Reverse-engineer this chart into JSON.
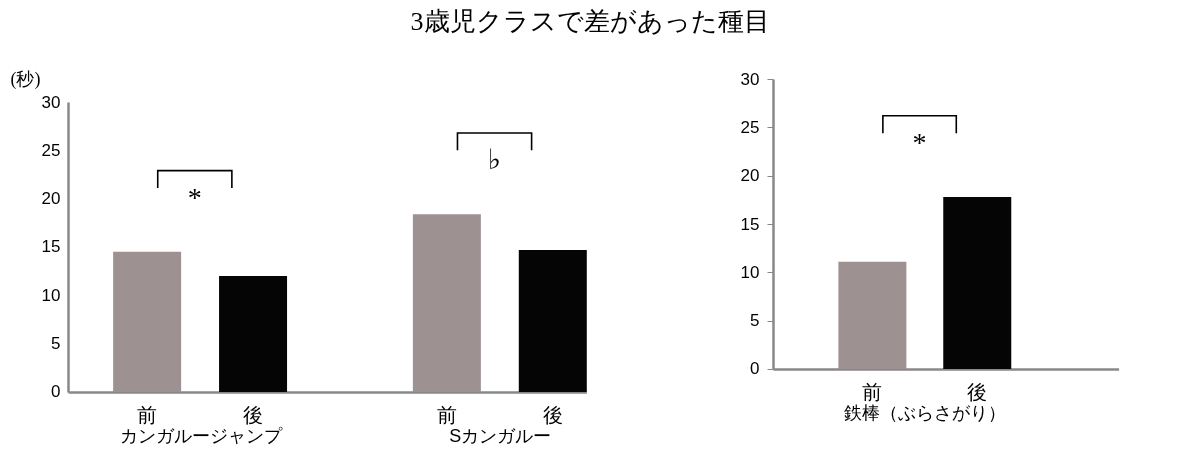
{
  "chart_data": [
    {
      "type": "bar",
      "title": "3歳児クラスで差があった種目",
      "ylabel": "(秒)",
      "categories": [
        "カンガルージャンプ",
        "Sカンガルー"
      ],
      "series": [
        {
          "name": "前",
          "color": "#9e9191",
          "values": [
            14.5,
            18.4
          ]
        },
        {
          "name": "後",
          "color": "#050505",
          "values": [
            12.0,
            14.7
          ]
        }
      ],
      "ylim": [
        0,
        30
      ],
      "yticks": [
        0,
        5,
        10,
        15,
        20,
        25,
        30
      ],
      "annotations": [
        "*",
        "♭"
      ]
    },
    {
      "type": "bar",
      "categories": [
        "鉄棒（ぶらさがり）"
      ],
      "series": [
        {
          "name": "前",
          "color": "#9e9191",
          "values": [
            11.1
          ]
        },
        {
          "name": "後",
          "color": "#050505",
          "values": [
            17.8
          ]
        }
      ],
      "ylim": [
        0,
        30
      ],
      "yticks": [
        0,
        5,
        10,
        15,
        20,
        25,
        30
      ],
      "annotations": [
        "*"
      ]
    }
  ]
}
